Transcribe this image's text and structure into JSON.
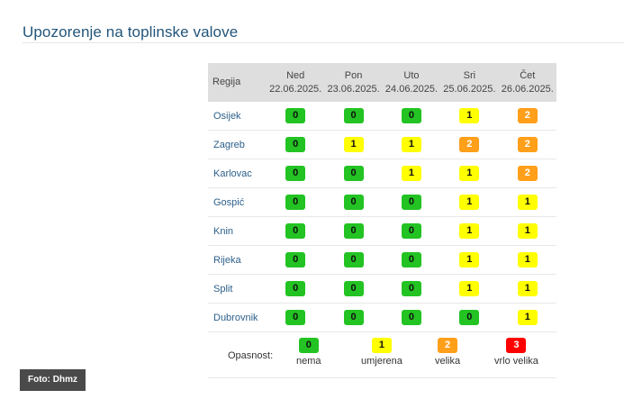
{
  "title": "Upozorenje na toplinske valove",
  "table": {
    "region_header": "Regija",
    "days": [
      {
        "day": "Ned",
        "date": "22.06.2025."
      },
      {
        "day": "Pon",
        "date": "23.06.2025."
      },
      {
        "day": "Uto",
        "date": "24.06.2025."
      },
      {
        "day": "Sri",
        "date": "25.06.2025."
      },
      {
        "day": "Čet",
        "date": "26.06.2025."
      }
    ],
    "rows": [
      {
        "region": "Osijek",
        "levels": [
          "0",
          "0",
          "0",
          "1",
          "2"
        ]
      },
      {
        "region": "Zagreb",
        "levels": [
          "0",
          "1",
          "1",
          "2",
          "2"
        ]
      },
      {
        "region": "Karlovac",
        "levels": [
          "0",
          "0",
          "1",
          "1",
          "2"
        ]
      },
      {
        "region": "Gospić",
        "levels": [
          "0",
          "0",
          "0",
          "1",
          "1"
        ]
      },
      {
        "region": "Knin",
        "levels": [
          "0",
          "0",
          "0",
          "1",
          "1"
        ]
      },
      {
        "region": "Rijeka",
        "levels": [
          "0",
          "0",
          "0",
          "1",
          "1"
        ]
      },
      {
        "region": "Split",
        "levels": [
          "0",
          "0",
          "0",
          "1",
          "1"
        ]
      },
      {
        "region": "Dubrovnik",
        "levels": [
          "0",
          "0",
          "0",
          "0",
          "1"
        ]
      }
    ]
  },
  "legend": {
    "label": "Opasnost:",
    "items": [
      {
        "value": "0",
        "text": "nema"
      },
      {
        "value": "1",
        "text": "umjerena"
      },
      {
        "value": "2",
        "text": "velika"
      },
      {
        "value": "3",
        "text": "vrlo velika"
      }
    ]
  },
  "colors": {
    "level_0": "#22c322",
    "level_1": "#ffff00",
    "level_2": "#ff9f1a",
    "level_3": "#ff0000",
    "title": "#22557a",
    "region_link": "#2c5f8a"
  },
  "photo_credit": "Foto: Dhmz"
}
